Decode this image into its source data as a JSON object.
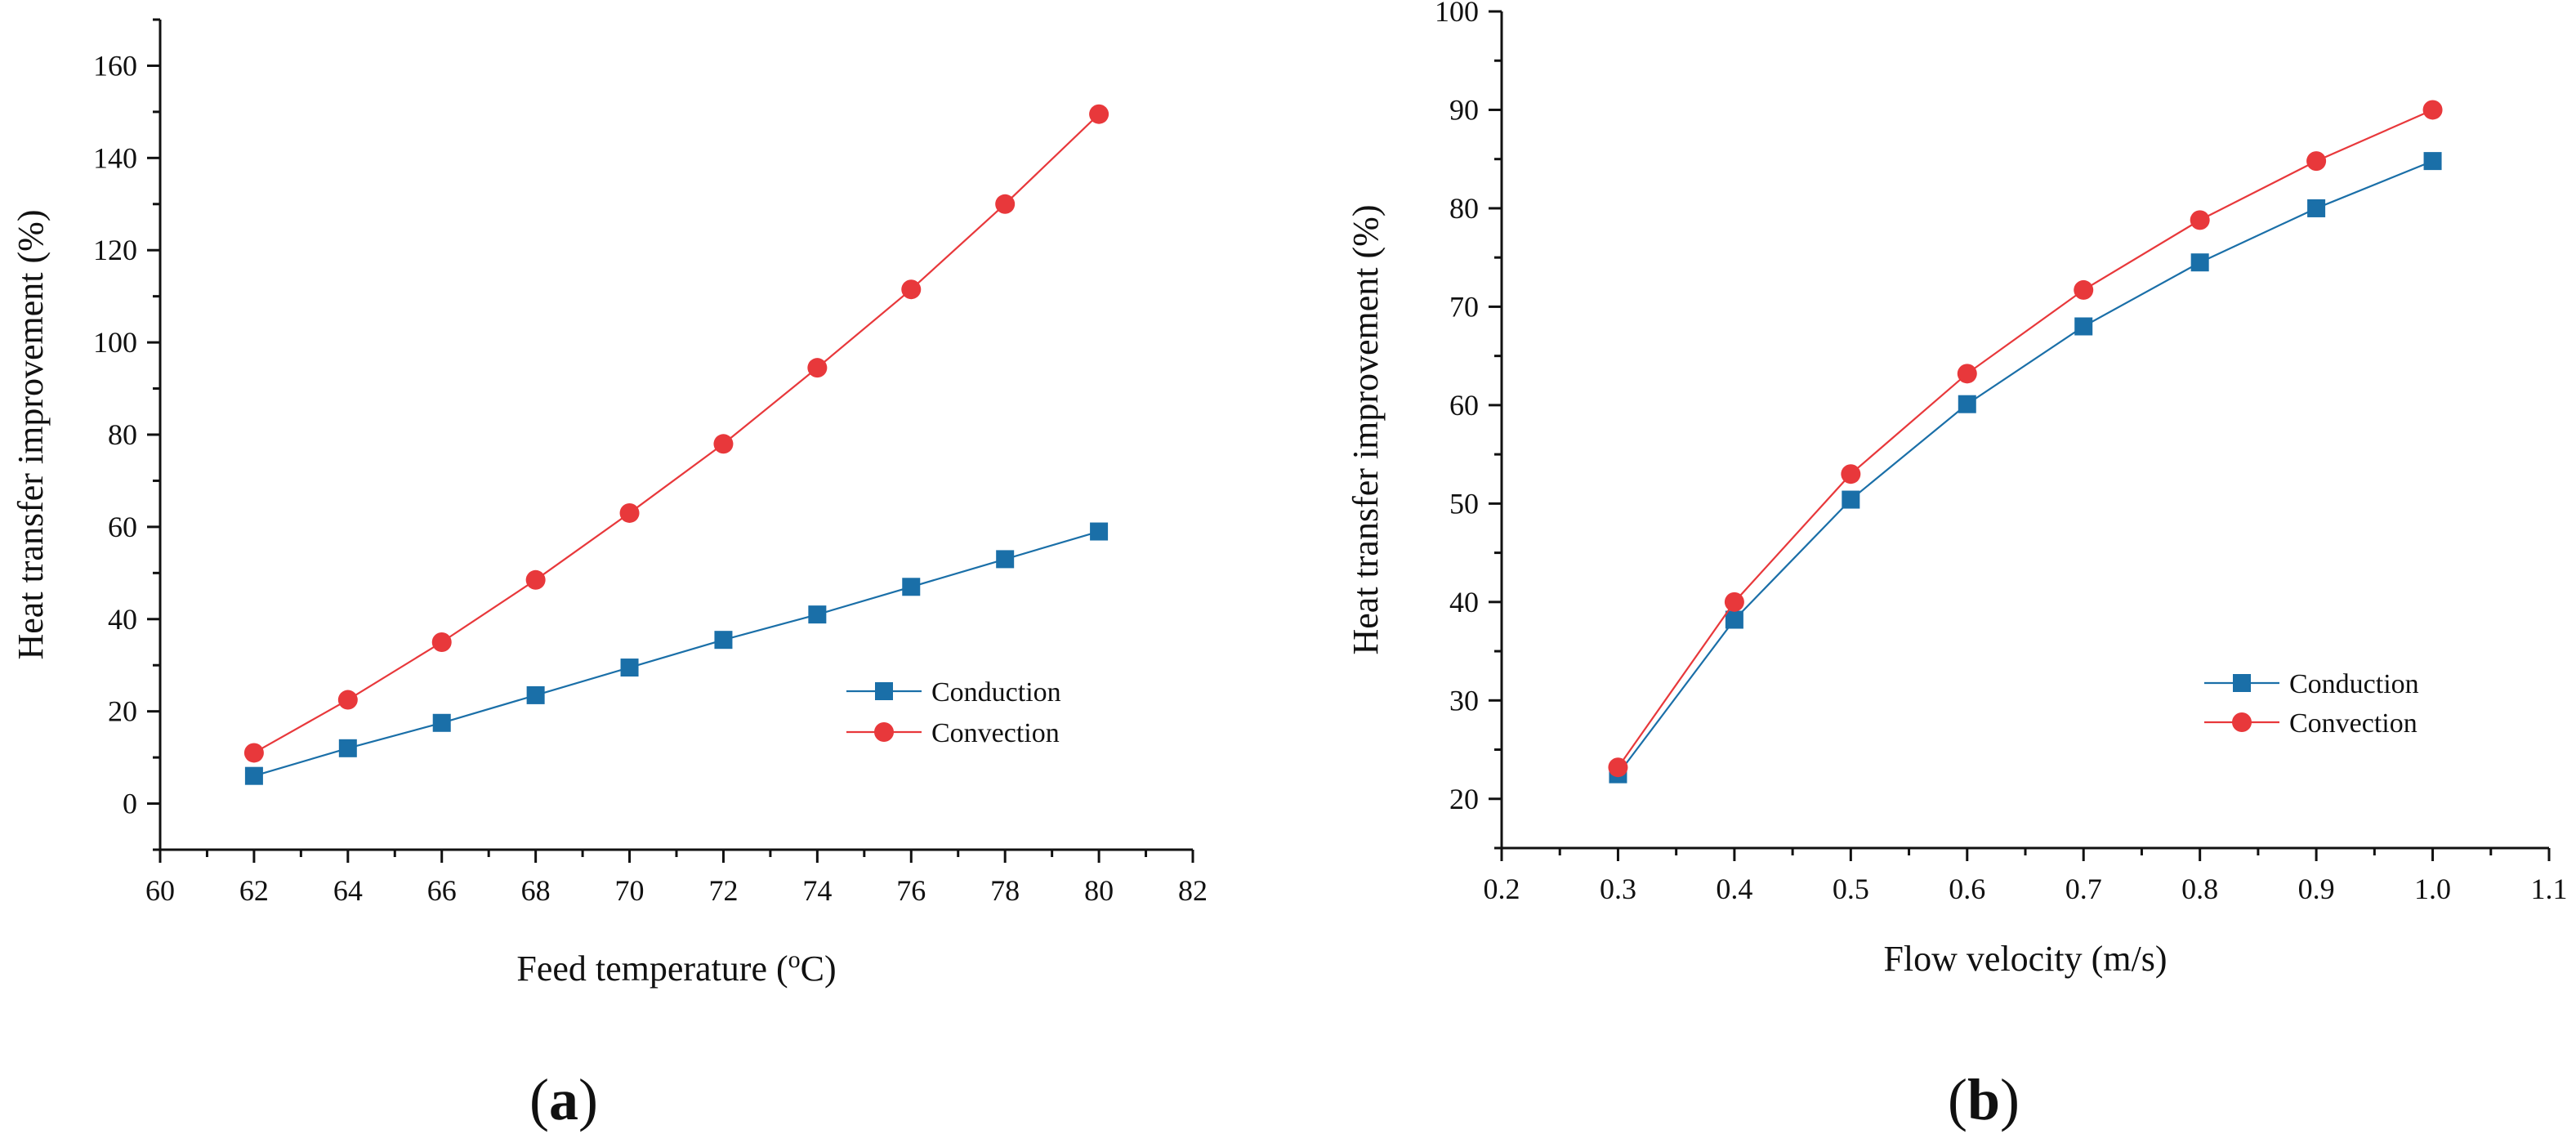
{
  "chart_data": [
    {
      "type": "line",
      "panel_label": "a",
      "title": "",
      "xlabel": "Feed temperature (",
      "xlabel_sup": "o",
      "xlabel_suffix": "C)",
      "ylabel": "Heat transfer improvement (%)",
      "xlim": [
        60,
        82
      ],
      "ylim": [
        -10,
        170
      ],
      "xticks": [
        60,
        62,
        64,
        66,
        68,
        70,
        72,
        74,
        76,
        78,
        80,
        82
      ],
      "yticks": [
        0,
        20,
        40,
        60,
        80,
        100,
        120,
        140,
        160
      ],
      "x": [
        62,
        64,
        66,
        68,
        70,
        72,
        74,
        76,
        78,
        80
      ],
      "series": [
        {
          "name": "Conduction",
          "marker": "square",
          "color": "#1a6fa8",
          "values": [
            6,
            12,
            17.5,
            23.5,
            29.5,
            35.5,
            41,
            47,
            53,
            59
          ]
        },
        {
          "name": "Convection",
          "marker": "circle",
          "color": "#e8383b",
          "values": [
            11,
            22.5,
            35,
            48.5,
            63,
            78,
            94.5,
            111.5,
            130,
            149.5
          ]
        }
      ],
      "grid": false,
      "legend_position": "lower-right"
    },
    {
      "type": "line",
      "panel_label": "b",
      "title": "",
      "xlabel": "Flow velocity (m/s)",
      "ylabel": "Heat transfer improvement (%)",
      "xlim": [
        0.2,
        1.1
      ],
      "ylim": [
        15,
        100
      ],
      "xticks": [
        0.2,
        0.3,
        0.4,
        0.5,
        0.6,
        0.7,
        0.8,
        0.9,
        1.0,
        1.1
      ],
      "xtick_labels": [
        "0.2",
        "0.3",
        "0.4",
        "0.5",
        "0.6",
        "0.7",
        "0.8",
        "0.9",
        "1.0",
        "1.1"
      ],
      "yticks": [
        20,
        30,
        40,
        50,
        60,
        70,
        80,
        90,
        100
      ],
      "x": [
        0.3,
        0.4,
        0.5,
        0.6,
        0.7,
        0.8,
        0.9,
        1.0
      ],
      "series": [
        {
          "name": "Conduction",
          "marker": "square",
          "color": "#1a6fa8",
          "values": [
            22.5,
            38.2,
            50.4,
            60.1,
            68,
            74.5,
            80,
            84.8
          ]
        },
        {
          "name": "Convection",
          "marker": "circle",
          "color": "#e8383b",
          "values": [
            23.2,
            40,
            53,
            63.2,
            71.7,
            78.8,
            84.8,
            90
          ]
        }
      ],
      "grid": false,
      "legend_position": "lower-right"
    }
  ]
}
